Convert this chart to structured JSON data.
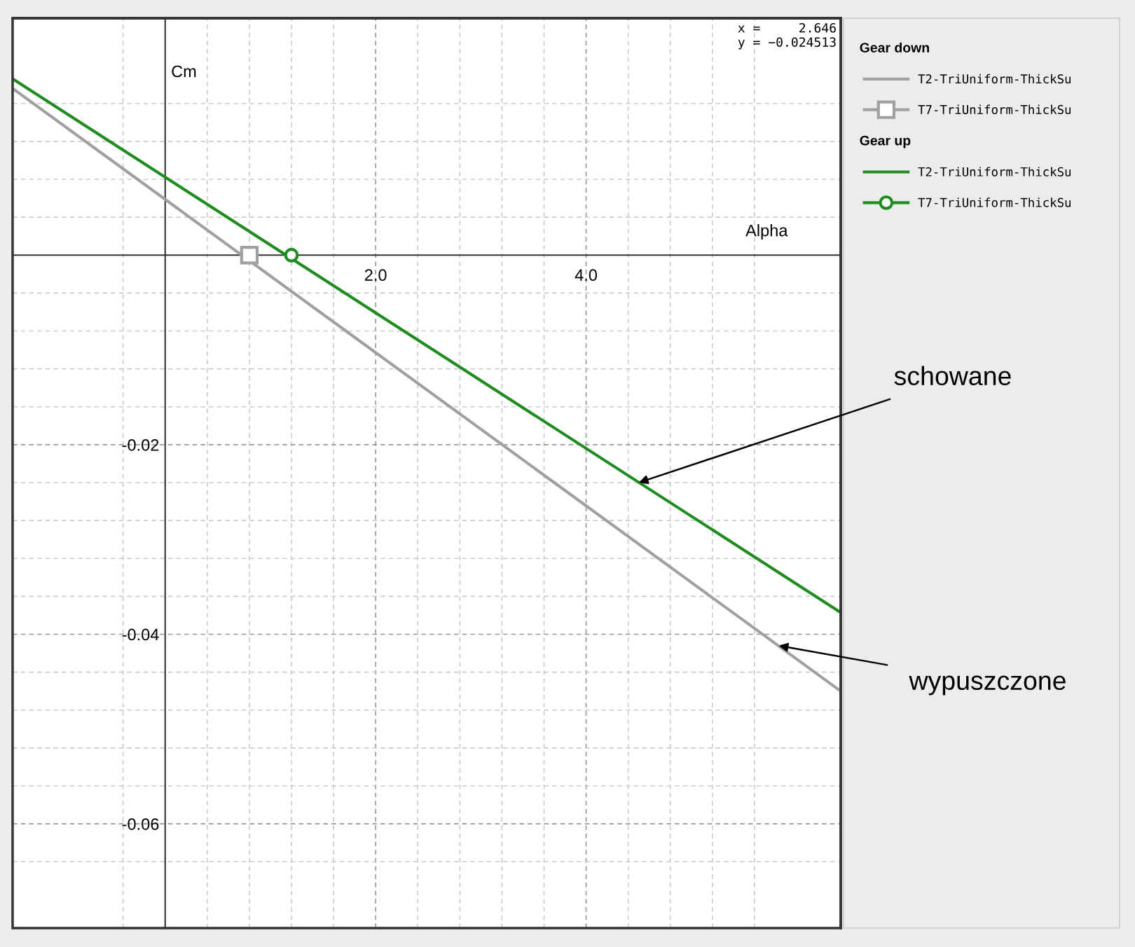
{
  "chart_data": {
    "type": "line",
    "xlabel": "Alpha",
    "ylabel": "Cm",
    "xlim": [
      -1.45,
      6.42
    ],
    "ylim": [
      -0.071,
      0.025
    ],
    "xticks": [
      {
        "value": -0.4,
        "label": null
      },
      {
        "value": 0,
        "label": null
      },
      {
        "value": 0.4,
        "label": null
      },
      {
        "value": 0.8,
        "label": null
      },
      {
        "value": 1.2,
        "label": null
      },
      {
        "value": 1.6,
        "label": null
      },
      {
        "value": 2.0,
        "label": "2.0"
      },
      {
        "value": 2.4,
        "label": null
      },
      {
        "value": 2.8,
        "label": null
      },
      {
        "value": 3.2,
        "label": null
      },
      {
        "value": 3.6,
        "label": null
      },
      {
        "value": 4.0,
        "label": "4.0"
      },
      {
        "value": 4.4,
        "label": null
      },
      {
        "value": 4.8,
        "label": null
      },
      {
        "value": 5.2,
        "label": null
      },
      {
        "value": 5.6,
        "label": null
      }
    ],
    "yticks": [
      {
        "value": 0.016,
        "label": null
      },
      {
        "value": 0.012,
        "label": null
      },
      {
        "value": 0.008,
        "label": null
      },
      {
        "value": 0.004,
        "label": null
      },
      {
        "value": 0,
        "label": null
      },
      {
        "value": -0.004,
        "label": null
      },
      {
        "value": -0.008,
        "label": null
      },
      {
        "value": -0.012,
        "label": null
      },
      {
        "value": -0.016,
        "label": null
      },
      {
        "value": -0.02,
        "label": "-0.02"
      },
      {
        "value": -0.024,
        "label": null
      },
      {
        "value": -0.028,
        "label": null
      },
      {
        "value": -0.032,
        "label": null
      },
      {
        "value": -0.036,
        "label": null
      },
      {
        "value": -0.04,
        "label": "-0.04"
      },
      {
        "value": -0.044,
        "label": null
      },
      {
        "value": -0.048,
        "label": null
      },
      {
        "value": -0.052,
        "label": null
      },
      {
        "value": -0.056,
        "label": null
      },
      {
        "value": -0.06,
        "label": "-0.06"
      },
      {
        "value": -0.064,
        "label": null
      }
    ],
    "grid": true,
    "legend": "right",
    "series": [
      {
        "name": "T2-TriUniform-ThickSu",
        "color": "#a0a0a4",
        "x": [
          -1.45,
          6.42
        ],
        "values": [
          0.0176,
          -0.046
        ],
        "marker": "none"
      },
      {
        "name": "T7-TriUniform-ThickSu",
        "color": "#a0a0a4",
        "x": [
          0.8
        ],
        "values": [
          0
        ],
        "marker": "square"
      },
      {
        "name": "T2-TriUniform-ThickSu",
        "color": "#1e8c1e",
        "x": [
          -1.45,
          6.42
        ],
        "values": [
          0.0186,
          -0.0377
        ],
        "marker": "none"
      },
      {
        "name": "T7-TriUniform-ThickSu",
        "color": "#1e8c1e",
        "x": [
          1.2
        ],
        "values": [
          0
        ],
        "marker": "circle"
      }
    ],
    "annotations": [
      "x =     2.646\ny = −0.024513",
      "Gear down",
      "Gear up",
      {
        "text": "schowane",
        "x": 4.5,
        "y": -0.024
      },
      {
        "text": "wypuszczone",
        "x": 5.83,
        "y": -0.0412
      }
    ]
  }
}
